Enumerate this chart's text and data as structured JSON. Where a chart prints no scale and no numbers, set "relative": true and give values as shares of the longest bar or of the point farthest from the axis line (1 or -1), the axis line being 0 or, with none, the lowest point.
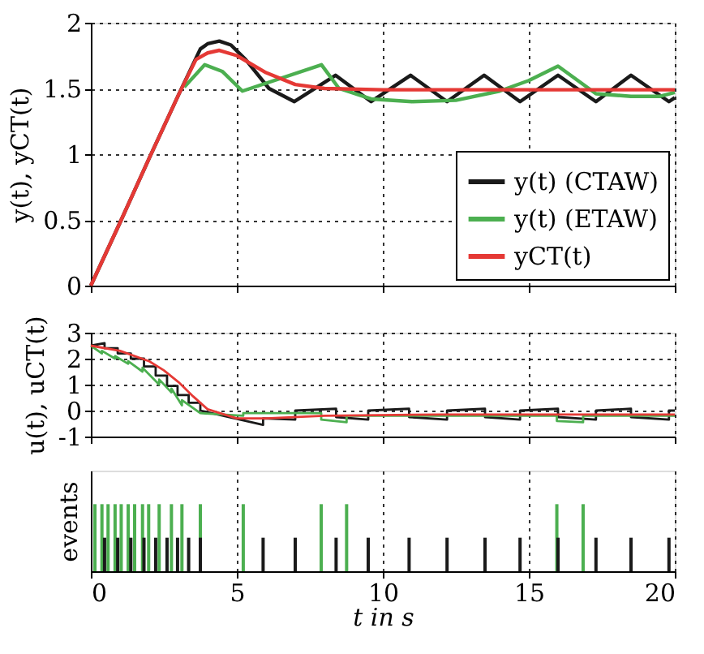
{
  "chart_data": [
    {
      "type": "line",
      "ylabel": "y(t), yCT(t)",
      "xlim": [
        0,
        20
      ],
      "xticks": [
        0,
        5,
        10,
        15,
        20
      ],
      "ylim": [
        0,
        2
      ],
      "yticks": [
        0,
        0.5,
        1,
        1.5,
        2
      ],
      "grid": true,
      "legend": "bottom right",
      "tick_labels": "y",
      "line_style": "solid",
      "series": [
        {
          "name": "y(t) (CTAW)",
          "color": "#1a1a1a",
          "x": [
            0,
            1,
            2,
            3,
            3.75,
            4.0,
            4.4,
            4.8,
            5.3,
            6.1,
            6.97,
            8.38,
            9.6,
            10.95,
            12.2,
            13.47,
            14.7,
            16.0,
            17.3,
            18.5,
            19.8,
            20
          ],
          "values": [
            0,
            0.48,
            0.97,
            1.45,
            1.8,
            1.84,
            1.86,
            1.83,
            1.72,
            1.5,
            1.4,
            1.6,
            1.4,
            1.6,
            1.4,
            1.6,
            1.4,
            1.6,
            1.4,
            1.6,
            1.4,
            1.43
          ]
        },
        {
          "name": "y(t) (ETAW)",
          "color": "#4caf50",
          "x": [
            3.2,
            3.9,
            4.5,
            5.19,
            7.9,
            8.5,
            9.6,
            11.0,
            12.5,
            14.0,
            15.0,
            16.0,
            17.3,
            18.5,
            19.5,
            20
          ],
          "values": [
            1.51,
            1.68,
            1.63,
            1.48,
            1.68,
            1.5,
            1.42,
            1.4,
            1.41,
            1.48,
            1.56,
            1.67,
            1.46,
            1.44,
            1.44,
            1.47
          ]
        },
        {
          "name": "yCT(t)",
          "color": "#e53935",
          "x": [
            0,
            1,
            2,
            3,
            3.6,
            4.0,
            4.4,
            5.0,
            6.0,
            7.0,
            8.0,
            10.0,
            15.0,
            20
          ],
          "values": [
            0,
            0.48,
            0.97,
            1.45,
            1.72,
            1.77,
            1.79,
            1.75,
            1.62,
            1.53,
            1.5,
            1.49,
            1.49,
            1.49
          ]
        }
      ]
    },
    {
      "type": "line",
      "ylabel": "u(t), uCT(t)",
      "xlim": [
        0,
        20
      ],
      "xticks": [
        0,
        5,
        10,
        15,
        20
      ],
      "ylim": [
        -1,
        3
      ],
      "yticks": [
        -1,
        0,
        1,
        2,
        3
      ],
      "grid": true,
      "legend": false,
      "tick_labels": "y",
      "line_style": "solid",
      "series": [
        {
          "color": "#1a1a1a",
          "x": [
            0,
            0.47,
            0.47,
            0.92,
            0.92,
            1.37,
            1.37,
            1.82,
            1.82,
            2.22,
            2.22,
            2.61,
            2.61,
            2.97,
            2.97,
            3.35,
            3.35,
            3.75,
            3.75,
            5.9,
            5.9,
            7.0,
            7.0,
            8.4,
            8.4,
            9.5,
            9.5,
            10.9,
            10.9,
            12.2,
            12.2,
            13.5,
            13.5,
            14.7,
            14.7,
            16.0,
            16.0,
            17.3,
            17.3,
            18.5,
            18.5,
            19.8,
            19.8,
            20
          ],
          "values": [
            2.5,
            2.6,
            2.4,
            2.4,
            2.2,
            2.2,
            2.0,
            2.0,
            1.7,
            1.7,
            1.35,
            1.35,
            0.95,
            0.95,
            0.6,
            0.6,
            0.3,
            0.3,
            0.0,
            -0.55,
            -0.3,
            -0.35,
            0.0,
            0.07,
            -0.25,
            -0.35,
            0.0,
            0.07,
            -0.25,
            -0.35,
            0.0,
            0.07,
            -0.25,
            -0.35,
            0.0,
            0.07,
            -0.25,
            -0.35,
            0.0,
            0.07,
            -0.25,
            -0.35,
            0.0,
            0.0
          ]
        },
        {
          "color": "#4caf50",
          "x": [
            0,
            0.38,
            0.38,
            0.83,
            0.83,
            1.28,
            1.28,
            1.77,
            1.77,
            2.34,
            2.34,
            2.76,
            2.76,
            3.12,
            3.12,
            3.75,
            5.22,
            5.22,
            7.89,
            7.89,
            8.76,
            8.76,
            15.96,
            15.96,
            16.86,
            16.86,
            20
          ],
          "values": [
            2.5,
            2.2,
            2.3,
            2.0,
            2.1,
            1.8,
            1.9,
            1.5,
            1.65,
            1.0,
            1.2,
            0.7,
            0.85,
            0.2,
            0.4,
            -0.1,
            -0.2,
            -0.1,
            -0.1,
            -0.35,
            -0.45,
            -0.2,
            -0.2,
            -0.4,
            -0.45,
            -0.2,
            -0.2
          ]
        },
        {
          "color": "#e53935",
          "x": [
            0,
            1,
            2,
            2.5,
            3,
            3.5,
            4,
            5,
            6,
            8,
            12,
            20
          ],
          "values": [
            2.5,
            2.3,
            1.9,
            1.55,
            1.1,
            0.55,
            0.05,
            -0.3,
            -0.3,
            -0.2,
            -0.15,
            -0.15
          ]
        }
      ]
    },
    {
      "type": "bar",
      "ylabel": "events",
      "xlabel": "t in s",
      "xlim": [
        0,
        20
      ],
      "xticks": [
        0,
        5,
        10,
        15,
        20
      ],
      "relative": true,
      "grid": "x",
      "legend": false,
      "tick_labels": "x",
      "series": [
        {
          "color": "#1a1a1a",
          "x": [
            0.47,
            0.92,
            1.37,
            1.82,
            2.22,
            2.61,
            2.97,
            3.35,
            3.75,
            5.9,
            7.0,
            8.4,
            9.5,
            10.9,
            12.2,
            13.5,
            14.7,
            16.0,
            17.3,
            18.5,
            19.8
          ],
          "values": [
            0.5,
            0.5,
            0.5,
            0.5,
            0.5,
            0.5,
            0.5,
            0.5,
            0.5,
            0.5,
            0.5,
            0.5,
            0.5,
            0.5,
            0.5,
            0.5,
            0.5,
            0.5,
            0.5,
            0.5,
            0.5
          ]
        },
        {
          "color": "#4caf50",
          "x": [
            0.14,
            0.38,
            0.59,
            0.83,
            1.04,
            1.28,
            1.5,
            1.77,
            1.98,
            2.34,
            2.76,
            3.12,
            3.75,
            5.22,
            7.89,
            8.76,
            15.96,
            16.86
          ],
          "values": [
            1,
            1,
            1,
            1,
            1,
            1,
            1,
            1,
            1,
            1,
            1,
            1,
            1,
            1,
            1,
            1,
            1,
            1
          ]
        }
      ]
    }
  ]
}
